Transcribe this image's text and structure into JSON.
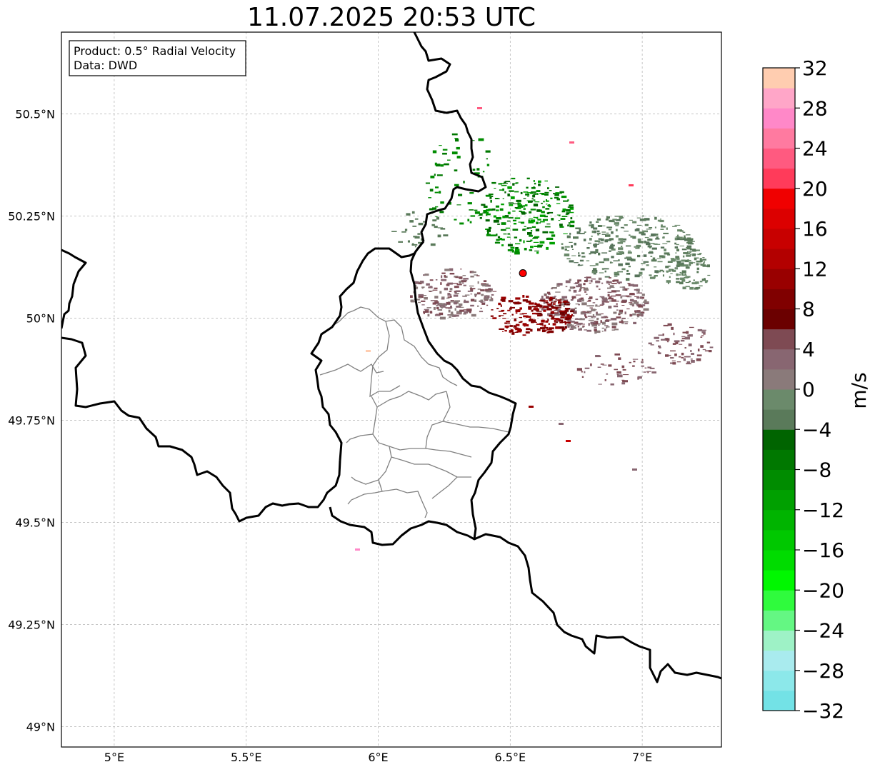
{
  "title": "11.07.2025 20:53 UTC",
  "info_box": {
    "product": "Product: 0.5° Radial Velocity",
    "data": "Data: DWD"
  },
  "map": {
    "lon_range": [
      4.8,
      7.3
    ],
    "lat_range": [
      48.95,
      50.7
    ],
    "lon_ticks": [
      {
        "value": 5.0,
        "label": "5°E"
      },
      {
        "value": 5.5,
        "label": "5.5°E"
      },
      {
        "value": 6.0,
        "label": "6°E"
      },
      {
        "value": 6.5,
        "label": "6.5°E"
      },
      {
        "value": 7.0,
        "label": "7°E"
      }
    ],
    "lat_ticks": [
      {
        "value": 49.0,
        "label": "49°N"
      },
      {
        "value": 49.25,
        "label": "49.25°N"
      },
      {
        "value": 49.5,
        "label": "49.5°N"
      },
      {
        "value": 49.75,
        "label": "49.75°N"
      },
      {
        "value": 50.0,
        "label": "50°N"
      },
      {
        "value": 50.25,
        "label": "50.25°N"
      },
      {
        "value": 50.5,
        "label": "50.5°N"
      }
    ],
    "grid": true,
    "radar_site": {
      "lon": 6.548,
      "lat": 50.11,
      "color": "#ff0000"
    },
    "border_color": "#000000",
    "admin_border_color": "#808080"
  },
  "colorbar": {
    "label": "m/s",
    "min": -32,
    "max": 32,
    "ticks": [
      {
        "value": 32,
        "label": "32"
      },
      {
        "value": 28,
        "label": "28"
      },
      {
        "value": 24,
        "label": "24"
      },
      {
        "value": 20,
        "label": "20"
      },
      {
        "value": 16,
        "label": "16"
      },
      {
        "value": 12,
        "label": "12"
      },
      {
        "value": 8,
        "label": "8"
      },
      {
        "value": 4,
        "label": "4"
      },
      {
        "value": 0,
        "label": "0"
      },
      {
        "value": -4,
        "label": "−4"
      },
      {
        "value": -8,
        "label": "−8"
      },
      {
        "value": -12,
        "label": "−12"
      },
      {
        "value": -16,
        "label": "−16"
      },
      {
        "value": -20,
        "label": "−20"
      },
      {
        "value": -24,
        "label": "−24"
      },
      {
        "value": -28,
        "label": "−28"
      },
      {
        "value": -32,
        "label": "−32"
      }
    ],
    "colors": [
      "#73e2e6",
      "#8ce8ea",
      "#a9ebee",
      "#9ef2c6",
      "#64f783",
      "#2ffb3d",
      "#00f700",
      "#00dc00",
      "#00c800",
      "#00b400",
      "#00a000",
      "#008c00",
      "#007800",
      "#006400",
      "#5a7a5a",
      "#6b8a6b",
      "#8a7a7a",
      "#886671",
      "#7e4a53",
      "#6b0000",
      "#800000",
      "#990000",
      "#b30000",
      "#c80000",
      "#dc0000",
      "#f00000",
      "#ff3b5a",
      "#ff5a80",
      "#ff7aa0",
      "#ff88c8",
      "#ffa6c8",
      "#ffcdb0"
    ]
  }
}
